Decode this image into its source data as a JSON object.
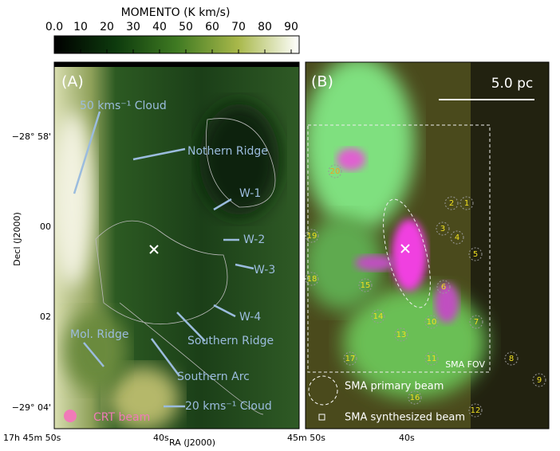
{
  "colorbar": {
    "title": "MOMENTO (K km/s)",
    "ticks": [
      "0.0",
      "10",
      "20",
      "30",
      "40",
      "50",
      "60",
      "70",
      "80",
      "90"
    ]
  },
  "axes": {
    "y_label": "Decl (J2000)",
    "y_ticks": [
      "−28° 58'",
      "00",
      "02",
      "−29° 04'"
    ],
    "x_label": "RA (J2000)",
    "x_ticks_a": [
      "17h 45m 50s",
      "40s"
    ],
    "x_ticks_b": [
      "45m 50s",
      "40s"
    ]
  },
  "panel_a": {
    "label": "(A)",
    "annotations": [
      "50 kms⁻¹ Cloud",
      "Nothern Ridge",
      "W-1",
      "W-2",
      "W-3",
      "W-4",
      "Southern Ridge",
      "Mol. Ridge",
      "Southern Arc",
      "20 kms⁻¹ Cloud"
    ],
    "beam": "CRT beam"
  },
  "panel_b": {
    "label": "(B)",
    "scale_bar": "5.0 pc",
    "fov": "SMA FOV",
    "primary_beam": "SMA primary beam",
    "synthesized_beam": "SMA synthesized beam",
    "sources": [
      "1",
      "2",
      "3",
      "4",
      "5",
      "6",
      "7",
      "8",
      "9",
      "10",
      "11",
      "12",
      "13",
      "14",
      "15",
      "16",
      "17",
      "18",
      "19",
      "20"
    ]
  }
}
